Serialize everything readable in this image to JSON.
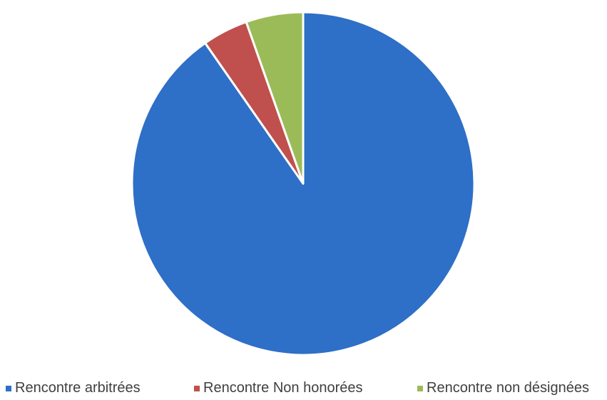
{
  "chart_data": {
    "type": "pie",
    "title": "",
    "slices": [
      {
        "label": "Rencontre arbitrées",
        "value": 90.3,
        "color": "#2E6FC7"
      },
      {
        "label": "Rencontre Non honorées",
        "value": 4.3,
        "color": "#C0504D"
      },
      {
        "label": "Rencontre non désignées",
        "value": 5.4,
        "color": "#9BBB59"
      }
    ],
    "start_angle_deg": 0,
    "direction": "clockwise",
    "slice_border_color": "#ffffff",
    "legend_position": "bottom"
  }
}
